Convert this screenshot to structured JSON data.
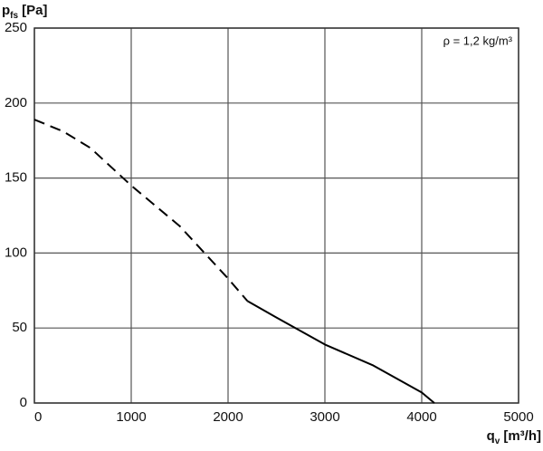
{
  "chart_data": {
    "type": "line",
    "ylabel": {
      "symbol": "p",
      "subscript": "fs",
      "unit": "[Pa]"
    },
    "xlabel": {
      "symbol": "q",
      "subscript": "v",
      "unit": "[m³/h]"
    },
    "annotation": "ρ = 1,2 kg/m³",
    "x": [
      0,
      300,
      580,
      1000,
      1500,
      2000,
      2200,
      2500,
      3000,
      3500,
      4000,
      4130
    ],
    "series": [
      {
        "color": "#000000",
        "dashed": true,
        "values": [
          189,
          181,
          170,
          145,
          118,
          83,
          68,
          null,
          null,
          null,
          null,
          null
        ]
      },
      {
        "color": "#000000",
        "dashed": false,
        "values": [
          null,
          null,
          null,
          null,
          null,
          null,
          68,
          57,
          39,
          25,
          7,
          0
        ]
      }
    ],
    "xlim": [
      0,
      5000
    ],
    "xticks": [
      0,
      1000,
      2000,
      3000,
      4000,
      5000
    ],
    "ylim": [
      0,
      250
    ],
    "yticks": [
      0,
      50,
      100,
      150,
      200,
      250
    ],
    "grid": true
  }
}
